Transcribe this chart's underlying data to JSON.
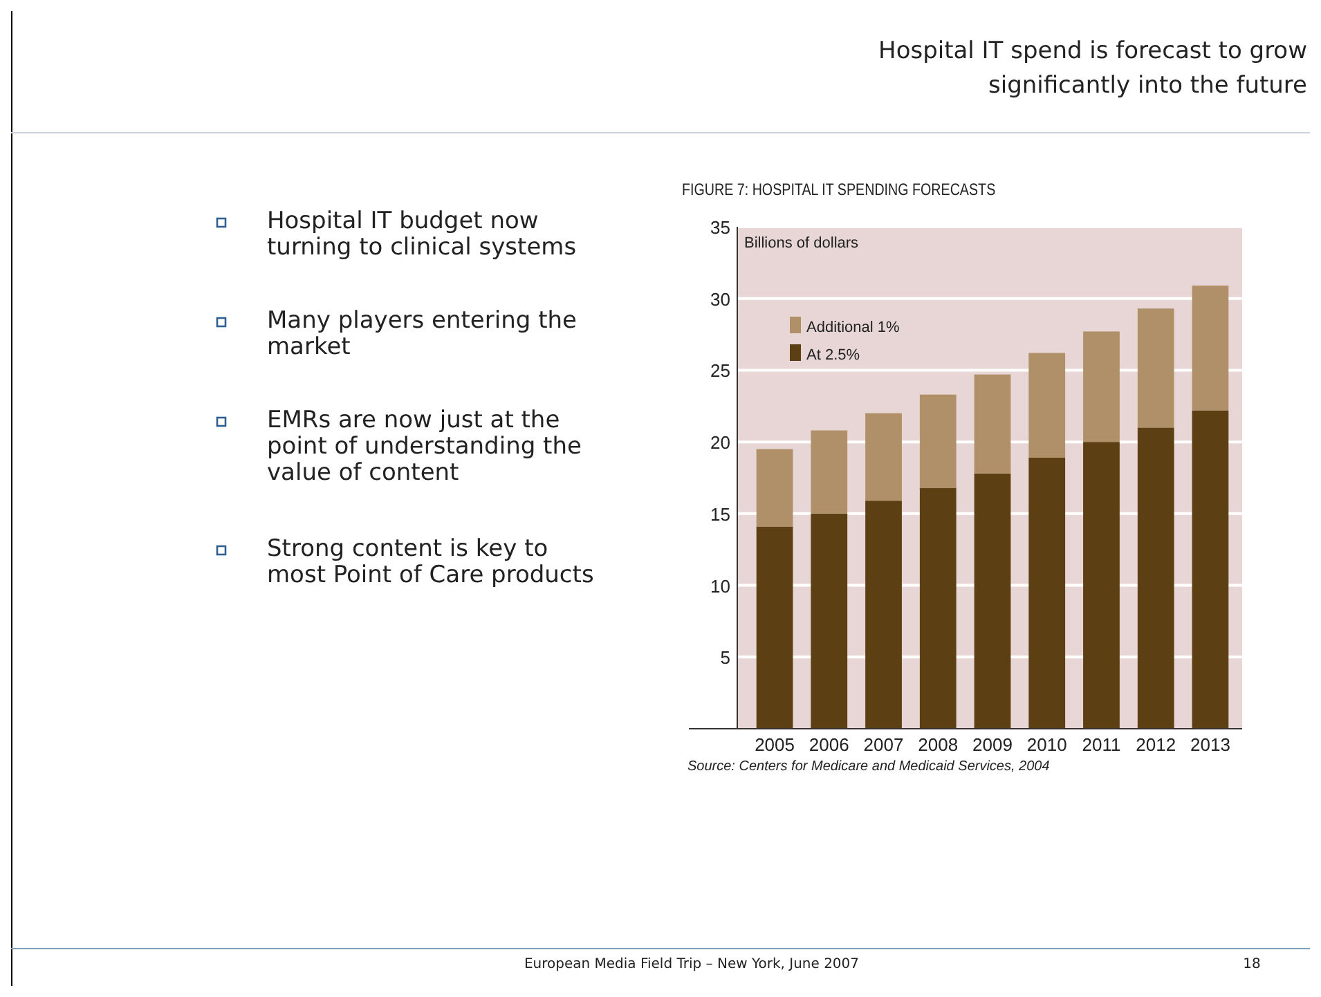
{
  "chart_data": {
    "type": "bar",
    "title": "FIGURE 7: HOSPITAL IT SPENDING FORECASTS",
    "ylabel": "Billions of dollars",
    "categories": [
      "2005",
      "2006",
      "2007",
      "2008",
      "2009",
      "2010",
      "2011",
      "2012",
      "2013"
    ],
    "series": [
      {
        "name": "At 2.5%",
        "color": "#5c3f12",
        "values": [
          14.1,
          15.0,
          15.9,
          16.8,
          17.8,
          18.9,
          20.0,
          21.0,
          22.2
        ]
      },
      {
        "name": "Additional 1%",
        "color": "#b09068",
        "values": [
          5.4,
          5.8,
          6.1,
          6.5,
          6.9,
          7.3,
          7.7,
          8.3,
          8.7
        ]
      }
    ],
    "stacked": true,
    "ylim": [
      0,
      35
    ],
    "yticks": [
      5,
      10,
      15,
      20,
      25,
      30,
      35
    ],
    "grid": "y",
    "legend": "top left",
    "annotations": [
      "Hospital IT spend is forecast to grow significantly into the future",
      "Hospital IT budget now turning to clinical systems",
      "Many players entering the market",
      "EMRs are now just at the point of understanding the value of content",
      "Strong content is key to most Point of Care products",
      "Source: Centers for Medicare and Medicaid Services, 2004",
      "European Media Field Trip – New York, June 2007",
      "18"
    ]
  }
}
